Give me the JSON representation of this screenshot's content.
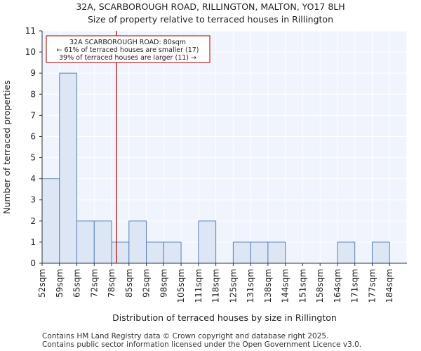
{
  "chart_data": {
    "type": "bar",
    "title": "32A, SCARBOROUGH ROAD, RILLINGTON, MALTON, YO17 8LH",
    "subtitle": "Size of property relative to terraced houses in Rillington",
    "xlabel": "Distribution of terraced houses by size in Rillington",
    "ylabel": "Number of terraced properties",
    "categories": [
      "52sqm",
      "59sqm",
      "65sqm",
      "72sqm",
      "78sqm",
      "85sqm",
      "92sqm",
      "98sqm",
      "105sqm",
      "111sqm",
      "118sqm",
      "125sqm",
      "131sqm",
      "138sqm",
      "144sqm",
      "151sqm",
      "158sqm",
      "164sqm",
      "171sqm",
      "177sqm",
      "184sqm"
    ],
    "values": [
      4,
      9,
      2,
      2,
      1,
      2,
      1,
      1,
      0,
      2,
      0,
      1,
      1,
      1,
      0,
      0,
      0,
      1,
      0,
      1,
      0
    ],
    "ylim": [
      0,
      11
    ],
    "yticks": [
      0,
      1,
      2,
      3,
      4,
      5,
      6,
      7,
      8,
      9,
      10,
      11
    ],
    "marker": {
      "value_sqm": 80,
      "color": "#aa0000"
    },
    "annotation": {
      "line1": "32A SCARBOROUGH ROAD: 80sqm",
      "line2": "← 61% of terraced houses are smaller (17)",
      "line3": "39% of terraced houses are larger (11) →"
    },
    "bar_color": "#dce6f5",
    "bar_edge": "#5a7fb8",
    "plot_bg": "#f0f4fc"
  },
  "footer": {
    "line1": "Contains HM Land Registry data © Crown copyright and database right 2025.",
    "line2": "Contains public sector information licensed under the Open Government Licence v3.0."
  }
}
